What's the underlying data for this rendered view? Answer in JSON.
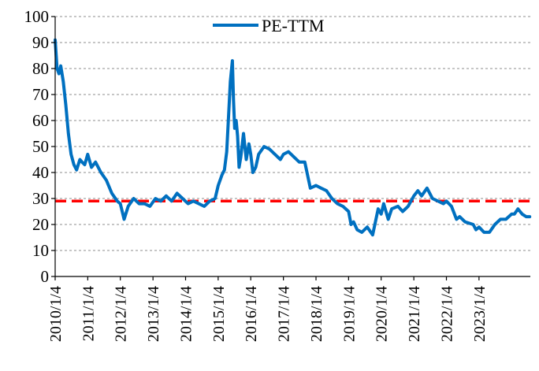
{
  "chart_data": {
    "type": "line",
    "title": "",
    "xlabel": "",
    "ylabel": "",
    "ylim": [
      0,
      100
    ],
    "yticks": [
      0,
      10,
      20,
      30,
      40,
      50,
      60,
      70,
      80,
      90,
      100
    ],
    "xlim": [
      "2010-01-04",
      "2024-08-01"
    ],
    "xtick_labels": [
      "2010/1/4",
      "2011/1/4",
      "2012/1/4",
      "2013/1/4",
      "2014/1/4",
      "2015/1/4",
      "2016/1/4",
      "2017/1/4",
      "2018/1/4",
      "2019/1/4",
      "2020/1/4",
      "2021/1/4",
      "2022/1/4",
      "2023/1/4"
    ],
    "xtick_dates": [
      "2010-01-04",
      "2011-01-04",
      "2012-01-04",
      "2013-01-04",
      "2014-01-04",
      "2015-01-04",
      "2016-01-04",
      "2017-01-04",
      "2018-01-04",
      "2019-01-04",
      "2020-01-04",
      "2021-01-04",
      "2022-01-04",
      "2023-01-04"
    ],
    "grid": "horizontal-dashed",
    "legend_position": "top-center",
    "series": [
      {
        "name": "PE-TTM",
        "color": "#0070c0",
        "x": [
          "2010-01-04",
          "2010-01-25",
          "2010-02-15",
          "2010-03-08",
          "2010-04-05",
          "2010-05-03",
          "2010-06-01",
          "2010-07-01",
          "2010-08-02",
          "2010-09-01",
          "2010-10-08",
          "2010-11-01",
          "2010-12-01",
          "2011-01-04",
          "2011-02-15",
          "2011-04-01",
          "2011-06-01",
          "2011-08-01",
          "2011-10-01",
          "2011-12-01",
          "2012-01-04",
          "2012-02-15",
          "2012-04-01",
          "2012-06-01",
          "2012-08-01",
          "2012-10-01",
          "2012-12-01",
          "2013-02-01",
          "2013-04-01",
          "2013-06-01",
          "2013-08-01",
          "2013-10-01",
          "2013-12-01",
          "2014-02-01",
          "2014-04-01",
          "2014-06-01",
          "2014-08-01",
          "2014-10-01",
          "2014-12-01",
          "2015-01-04",
          "2015-02-15",
          "2015-03-15",
          "2015-04-10",
          "2015-05-01",
          "2015-05-20",
          "2015-06-12",
          "2015-06-25",
          "2015-07-08",
          "2015-07-25",
          "2015-08-10",
          "2015-08-26",
          "2015-09-15",
          "2015-10-15",
          "2015-11-15",
          "2015-12-15",
          "2016-01-04",
          "2016-01-28",
          "2016-02-29",
          "2016-04-01",
          "2016-06-01",
          "2016-08-01",
          "2016-10-01",
          "2016-12-01",
          "2017-01-04",
          "2017-03-01",
          "2017-05-01",
          "2017-07-01",
          "2017-09-01",
          "2017-11-01",
          "2018-01-04",
          "2018-03-01",
          "2018-05-01",
          "2018-07-01",
          "2018-09-01",
          "2018-11-01",
          "2019-01-04",
          "2019-02-01",
          "2019-03-01",
          "2019-04-10",
          "2019-06-01",
          "2019-08-01",
          "2019-10-01",
          "2019-12-01",
          "2020-01-04",
          "2020-02-01",
          "2020-03-23",
          "2020-05-01",
          "2020-07-10",
          "2020-09-01",
          "2020-11-01",
          "2021-01-04",
          "2021-02-18",
          "2021-04-01",
          "2021-06-01",
          "2021-08-01",
          "2021-10-01",
          "2021-12-01",
          "2022-01-04",
          "2022-03-01",
          "2022-04-27",
          "2022-06-01",
          "2022-08-01",
          "2022-10-31",
          "2022-12-01",
          "2023-01-04",
          "2023-03-01",
          "2023-05-01",
          "2023-07-01",
          "2023-09-01",
          "2023-11-01",
          "2024-01-04",
          "2024-02-05",
          "2024-03-15",
          "2024-05-01",
          "2024-06-15",
          "2024-07-25"
        ],
        "y": [
          91,
          80,
          78,
          81,
          75,
          66,
          55,
          47,
          43,
          41,
          45,
          44,
          43,
          47,
          42,
          44,
          40,
          37,
          32,
          29,
          28,
          22,
          27,
          30,
          28,
          28,
          27,
          30,
          29,
          31,
          29,
          32,
          30,
          28,
          29,
          28,
          27,
          29,
          30,
          35,
          39,
          41,
          48,
          62,
          75,
          83,
          68,
          57,
          60,
          54,
          42,
          46,
          55,
          45,
          51,
          47,
          40,
          42,
          47,
          50,
          49,
          47,
          45,
          47,
          48,
          46,
          44,
          44,
          34,
          35,
          34,
          33,
          30,
          28,
          27,
          25,
          20,
          21,
          18,
          17,
          19,
          16,
          26,
          24,
          28,
          22,
          26,
          27,
          25,
          27,
          31,
          33,
          31,
          34,
          30,
          29,
          28,
          29,
          27,
          22,
          23,
          21,
          20,
          18,
          19,
          17,
          17,
          20,
          22,
          22,
          24,
          24,
          26,
          24,
          23,
          23
        ]
      }
    ],
    "reference_lines": [
      {
        "y": 29,
        "color": "#ff0000",
        "style": "dashed"
      }
    ]
  }
}
